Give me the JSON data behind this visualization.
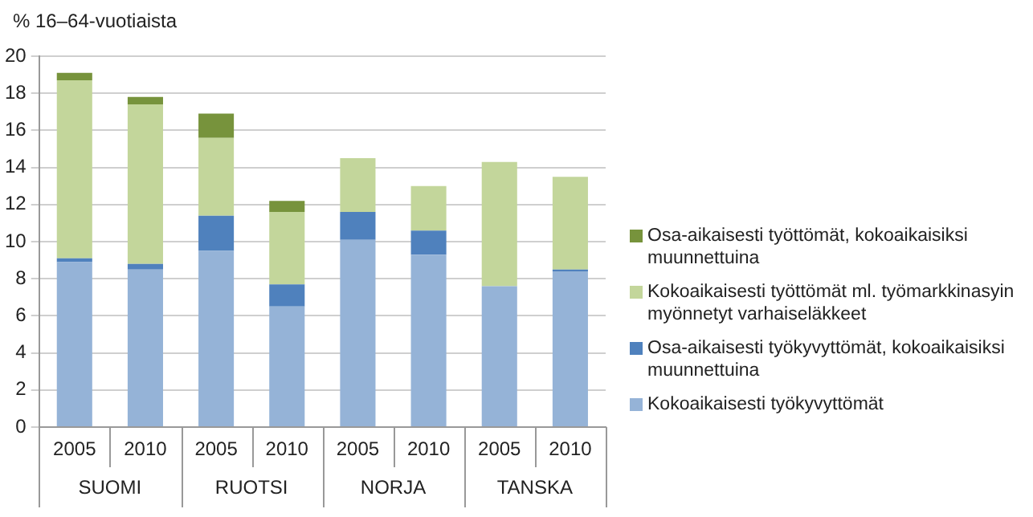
{
  "chart_data": {
    "type": "bar",
    "stacked": true,
    "ylabel": "% 16–64-vuotiaista",
    "categories": [
      "2005",
      "2010",
      "2005",
      "2010",
      "2005",
      "2010",
      "2005",
      "2010"
    ],
    "annotations": [
      "SUOMI",
      "RUOTSI",
      "NORJA",
      "TANSKA"
    ],
    "series": [
      {
        "name": "Kokoaikaisesti työkyvyttömät",
        "color": "#95b3d7",
        "values": [
          8.9,
          8.5,
          9.5,
          6.5,
          10.1,
          9.3,
          7.6,
          8.4
        ]
      },
      {
        "name": "Osa-aikaisesti työkyvyttömät, kokoaikaisiksi muunnettuina",
        "color": "#4f81bd",
        "values": [
          0.2,
          0.3,
          1.9,
          1.2,
          1.5,
          1.3,
          0,
          0.1
        ]
      },
      {
        "name": "Kokoaikaisesti työttömät ml. työmarkkinasyin myönnetyt varhaiseläkkeet",
        "color": "#c3d69b",
        "values": [
          9.6,
          8.6,
          4.2,
          3.9,
          2.9,
          2.4,
          6.7,
          5.0
        ]
      },
      {
        "name": "Osa-aikaisesti työttömät, kokoaikaisiksi muunnettuina",
        "color": "#77933c",
        "values": [
          0.4,
          0.4,
          1.3,
          0.6,
          0,
          0,
          0,
          0
        ]
      }
    ],
    "ylim": [
      0,
      20
    ],
    "yticks": [
      0,
      2,
      4,
      6,
      8,
      10,
      12,
      14,
      16,
      18,
      20
    ],
    "grid": "y",
    "legend": "right"
  }
}
